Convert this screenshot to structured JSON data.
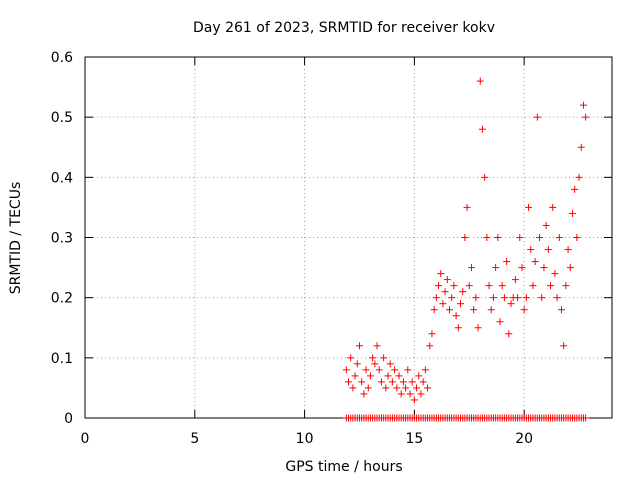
{
  "chart_data": {
    "type": "scatter",
    "title": "Day 261 of 2023, SRMTID for receiver kokv",
    "xlabel": "GPS time / hours",
    "ylabel": "SRMTID / TECUs",
    "xlim": [
      0,
      24
    ],
    "ylim": [
      0,
      0.6
    ],
    "xticks": [
      0,
      5,
      10,
      15,
      20
    ],
    "xtick_labels": [
      "0",
      "5",
      "10",
      "15",
      "20"
    ],
    "yticks": [
      0,
      0.1,
      0.2,
      0.3,
      0.4,
      0.5,
      0.6
    ],
    "ytick_labels": [
      "0",
      "0.1",
      "0.2",
      "0.3",
      "0.4",
      "0.5",
      "0.6"
    ],
    "grid": true,
    "marker": "+",
    "marker_color": "#ff0000",
    "series": [
      {
        "name": "SRMTID",
        "x": [
          11.9,
          12.0,
          12.1,
          12.2,
          12.3,
          12.4,
          12.5,
          12.6,
          12.7,
          12.8,
          12.9,
          13.0,
          13.1,
          13.2,
          13.3,
          13.4,
          13.5,
          13.6,
          13.7,
          13.8,
          13.9,
          14.0,
          14.1,
          14.2,
          14.3,
          14.4,
          14.5,
          14.6,
          14.7,
          14.8,
          14.9,
          15.0,
          15.1,
          15.2,
          15.3,
          15.4,
          15.5,
          15.6,
          15.7,
          15.8,
          15.9,
          16.0,
          16.1,
          16.2,
          16.3,
          16.4,
          16.5,
          16.6,
          16.7,
          16.8,
          16.9,
          17.0,
          17.1,
          17.2,
          17.3,
          17.4,
          17.5,
          17.6,
          17.7,
          17.8,
          17.9,
          18.0,
          18.1,
          18.2,
          18.3,
          18.4,
          18.5,
          18.6,
          18.7,
          18.8,
          18.9,
          19.0,
          19.1,
          19.2,
          19.3,
          19.4,
          19.5,
          19.6,
          19.7,
          19.8,
          19.9,
          20.0,
          20.1,
          20.2,
          20.3,
          20.4,
          20.5,
          20.6,
          20.7,
          20.8,
          20.9,
          21.0,
          21.1,
          21.2,
          21.3,
          21.4,
          21.5,
          21.6,
          21.7,
          21.8,
          21.9,
          22.0,
          22.1,
          22.2,
          22.3,
          22.4,
          22.5,
          22.6,
          22.7,
          22.8
        ],
        "y": [
          0.08,
          0.06,
          0.1,
          0.05,
          0.07,
          0.09,
          0.12,
          0.06,
          0.04,
          0.08,
          0.05,
          0.07,
          0.1,
          0.09,
          0.12,
          0.08,
          0.06,
          0.1,
          0.05,
          0.07,
          0.09,
          0.06,
          0.08,
          0.05,
          0.07,
          0.04,
          0.06,
          0.05,
          0.08,
          0.04,
          0.06,
          0.03,
          0.05,
          0.07,
          0.04,
          0.06,
          0.08,
          0.05,
          0.12,
          0.14,
          0.18,
          0.2,
          0.22,
          0.24,
          0.19,
          0.21,
          0.23,
          0.18,
          0.2,
          0.22,
          0.17,
          0.15,
          0.19,
          0.21,
          0.3,
          0.35,
          0.22,
          0.25,
          0.18,
          0.2,
          0.15,
          0.56,
          0.48,
          0.4,
          0.3,
          0.22,
          0.18,
          0.2,
          0.25,
          0.3,
          0.16,
          0.22,
          0.2,
          0.26,
          0.14,
          0.19,
          0.2,
          0.23,
          0.2,
          0.3,
          0.25,
          0.18,
          0.2,
          0.35,
          0.28,
          0.22,
          0.26,
          0.5,
          0.3,
          0.2,
          0.25,
          0.32,
          0.28,
          0.22,
          0.35,
          0.24,
          0.2,
          0.3,
          0.18,
          0.12,
          0.22,
          0.28,
          0.25,
          0.34,
          0.38,
          0.3,
          0.4,
          0.45,
          0.52,
          0.5
        ],
        "zero_band_x_start": 11.9,
        "zero_band_x_end": 22.8
      }
    ]
  }
}
